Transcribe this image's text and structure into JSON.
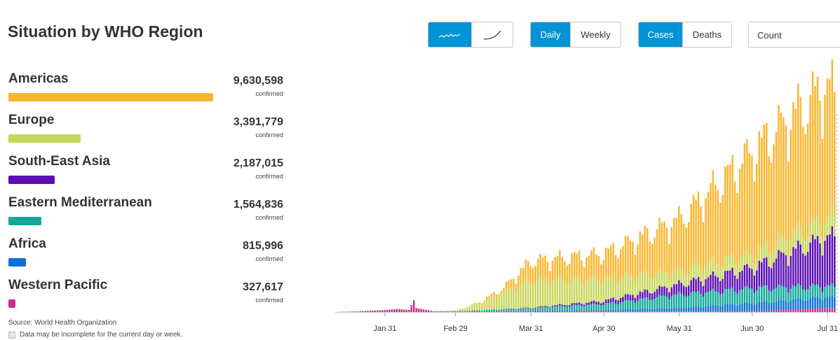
{
  "page": {
    "title": "Situation by WHO Region",
    "source": "Source: World Health Organization",
    "note": "Data may be incomplete for the current day or week."
  },
  "controls": {
    "chart_style": {
      "options": [
        "line-icon",
        "curve-icon"
      ],
      "selected": 0
    },
    "period": {
      "options": [
        "Daily",
        "Weekly"
      ],
      "selected": "Daily"
    },
    "metric": {
      "options": [
        "Cases",
        "Deaths"
      ],
      "selected": "Cases"
    },
    "mode": {
      "value": "Count"
    }
  },
  "regions": [
    {
      "name": "Americas",
      "value": "9,630,598",
      "sub": "confirmed",
      "share": 1.0,
      "color": "#f9b62f"
    },
    {
      "name": "Europe",
      "value": "3,391,779",
      "sub": "confirmed",
      "share": 0.352,
      "color": "#c7d65a"
    },
    {
      "name": "South-East Asia",
      "value": "2,187,015",
      "sub": "confirmed",
      "share": 0.227,
      "color": "#5b0fb4"
    },
    {
      "name": "Eastern Mediterranean",
      "value": "1,564,836",
      "sub": "confirmed",
      "share": 0.162,
      "color": "#11a89a"
    },
    {
      "name": "Africa",
      "value": "815,996",
      "sub": "confirmed",
      "share": 0.085,
      "color": "#0e6fd6"
    },
    {
      "name": "Western Pacific",
      "value": "327,617",
      "sub": "confirmed",
      "share": 0.034,
      "color": "#cc2c8c"
    }
  ],
  "chart_data": {
    "type": "bar",
    "stacked": true,
    "title": "",
    "xlabel": "",
    "ylabel": "",
    "x_start": "2020-01-11",
    "x_end": "2020-08-04",
    "x_tick_labels": [
      {
        "label": "Jan 31",
        "date": "2020-01-31"
      },
      {
        "label": "Feb 29",
        "date": "2020-02-29"
      },
      {
        "label": "Mar 31",
        "date": "2020-03-31"
      },
      {
        "label": "Apr 30",
        "date": "2020-04-30"
      },
      {
        "label": "May 31",
        "date": "2020-05-31"
      },
      {
        "label": "Jun 30",
        "date": "2020-06-30"
      },
      {
        "label": "Jul 31",
        "date": "2020-07-31"
      }
    ],
    "ylim": [
      0,
      300000
    ],
    "stack_order": [
      "Western Pacific",
      "Africa",
      "Eastern Mediterranean",
      "South-East Asia",
      "Europe",
      "Americas"
    ],
    "series": [
      {
        "name": "Americas",
        "color": "#f9b62f",
        "keyframes": [
          {
            "date": "2020-01-11",
            "value": 0
          },
          {
            "date": "2020-03-01",
            "value": 0
          },
          {
            "date": "2020-03-10",
            "value": 300
          },
          {
            "date": "2020-03-20",
            "value": 6000
          },
          {
            "date": "2020-03-31",
            "value": 25000
          },
          {
            "date": "2020-04-30",
            "value": 32000
          },
          {
            "date": "2020-05-31",
            "value": 65000
          },
          {
            "date": "2020-06-30",
            "value": 130000
          },
          {
            "date": "2020-07-31",
            "value": 170000
          },
          {
            "date": "2020-08-04",
            "value": 150000
          }
        ]
      },
      {
        "name": "Europe",
        "color": "#c7d65a",
        "keyframes": [
          {
            "date": "2020-01-11",
            "value": 0
          },
          {
            "date": "2020-02-20",
            "value": 50
          },
          {
            "date": "2020-03-01",
            "value": 1200
          },
          {
            "date": "2020-03-15",
            "value": 15000
          },
          {
            "date": "2020-03-31",
            "value": 34000
          },
          {
            "date": "2020-04-30",
            "value": 28000
          },
          {
            "date": "2020-05-31",
            "value": 17000
          },
          {
            "date": "2020-06-30",
            "value": 17000
          },
          {
            "date": "2020-07-31",
            "value": 24000
          },
          {
            "date": "2020-08-04",
            "value": 25000
          }
        ]
      },
      {
        "name": "South-East Asia",
        "color": "#5b0fb4",
        "keyframes": [
          {
            "date": "2020-01-11",
            "value": 0
          },
          {
            "date": "2020-03-15",
            "value": 50
          },
          {
            "date": "2020-03-31",
            "value": 400
          },
          {
            "date": "2020-04-30",
            "value": 4000
          },
          {
            "date": "2020-05-31",
            "value": 13000
          },
          {
            "date": "2020-06-30",
            "value": 26000
          },
          {
            "date": "2020-07-31",
            "value": 62000
          },
          {
            "date": "2020-08-04",
            "value": 64000
          }
        ]
      },
      {
        "name": "Eastern Mediterranean",
        "color": "#11a89a",
        "keyframes": [
          {
            "date": "2020-01-11",
            "value": 0
          },
          {
            "date": "2020-02-20",
            "value": 20
          },
          {
            "date": "2020-03-01",
            "value": 600
          },
          {
            "date": "2020-03-31",
            "value": 3500
          },
          {
            "date": "2020-04-30",
            "value": 7500
          },
          {
            "date": "2020-05-31",
            "value": 17000
          },
          {
            "date": "2020-06-30",
            "value": 19000
          },
          {
            "date": "2020-07-31",
            "value": 14000
          },
          {
            "date": "2020-08-04",
            "value": 13000
          }
        ]
      },
      {
        "name": "Africa",
        "color": "#0e6fd6",
        "keyframes": [
          {
            "date": "2020-01-11",
            "value": 0
          },
          {
            "date": "2020-03-10",
            "value": 10
          },
          {
            "date": "2020-03-31",
            "value": 300
          },
          {
            "date": "2020-04-30",
            "value": 1300
          },
          {
            "date": "2020-05-31",
            "value": 4500
          },
          {
            "date": "2020-06-30",
            "value": 10000
          },
          {
            "date": "2020-07-31",
            "value": 14000
          },
          {
            "date": "2020-08-04",
            "value": 13000
          }
        ]
      },
      {
        "name": "Western Pacific",
        "color": "#cc2c8c",
        "keyframes": [
          {
            "date": "2020-01-11",
            "value": 100
          },
          {
            "date": "2020-01-20",
            "value": 800
          },
          {
            "date": "2020-01-31",
            "value": 2500
          },
          {
            "date": "2020-02-05",
            "value": 3800
          },
          {
            "date": "2020-02-10",
            "value": 2700
          },
          {
            "date": "2020-02-12",
            "value": 15000
          },
          {
            "date": "2020-02-13",
            "value": 5000
          },
          {
            "date": "2020-02-20",
            "value": 1000
          },
          {
            "date": "2020-02-29",
            "value": 500
          },
          {
            "date": "2020-03-31",
            "value": 1500
          },
          {
            "date": "2020-04-30",
            "value": 1200
          },
          {
            "date": "2020-05-31",
            "value": 700
          },
          {
            "date": "2020-06-30",
            "value": 1200
          },
          {
            "date": "2020-07-31",
            "value": 5000
          },
          {
            "date": "2020-08-04",
            "value": 4500
          }
        ]
      }
    ],
    "incomplete_last_day": true,
    "legend": "left panel"
  }
}
